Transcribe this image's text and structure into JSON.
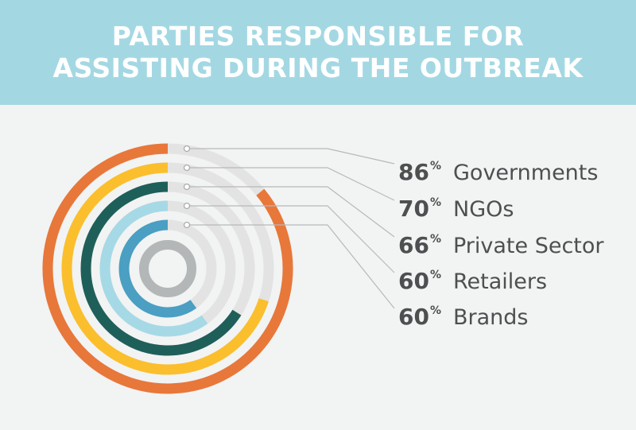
{
  "header": {
    "title_line1": "PARTIES RESPONSIBLE FOR",
    "title_line2": "ASSISTING DURING THE OUTBREAK"
  },
  "colors": {
    "header_bg": "#a3d8e3",
    "track": "#e3e3e3",
    "center": "#b3b7b8",
    "leader": "#b7b9ba",
    "text": "#4d4f51"
  },
  "chart_data": {
    "type": "radial-bar",
    "title": "PARTIES RESPONSIBLE FOR ASSISTING DURING THE OUTBREAK",
    "unit": "%",
    "categories": [
      "Governments",
      "NGOs",
      "Private Sector",
      "Retailers",
      "Brands"
    ],
    "values": [
      86,
      70,
      66,
      60,
      60
    ],
    "series_colors": [
      "#e8773a",
      "#fbbf2d",
      "#1f5f5a",
      "#a6d9e6",
      "#4a9fc2"
    ],
    "value_max": 100
  }
}
